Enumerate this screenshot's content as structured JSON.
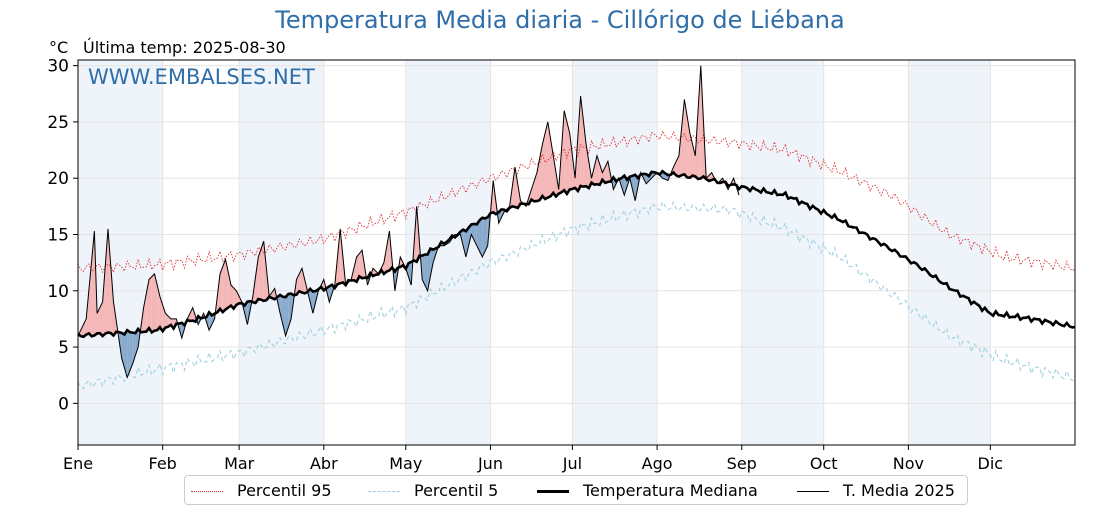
{
  "title": "Temperatura Media diaria - Cillórigo de Liébana",
  "unit": "°C",
  "last_temp": "Última temp: 2025-08-30",
  "watermark": "WWW.EMBALSES.NET",
  "legend": [
    {
      "label": "Percentil 95",
      "color": "#e03131",
      "style": "dotted"
    },
    {
      "label": "Percentil 5",
      "color": "#9fd0e0",
      "style": "dashed"
    },
    {
      "label": "Temperatura Mediana",
      "color": "#000000",
      "style": "thick"
    },
    {
      "label": "T. Media 2025",
      "color": "#000000",
      "style": "thin"
    }
  ],
  "chart_data": {
    "type": "line",
    "title": "Temperatura Media diaria - Cillórigo de Liébana",
    "xlabel": "",
    "ylabel": "°C",
    "xlim": [
      1,
      366
    ],
    "ylim": [
      -3.7,
      30.5
    ],
    "grid": true,
    "legend_position": "bottom",
    "x_ticks": [
      {
        "label": "Ene",
        "day": 1
      },
      {
        "label": "Feb",
        "day": 32
      },
      {
        "label": "Mar",
        "day": 60
      },
      {
        "label": "Abr",
        "day": 91
      },
      {
        "label": "May",
        "day": 121
      },
      {
        "label": "Jun",
        "day": 152
      },
      {
        "label": "Jul",
        "day": 182
      },
      {
        "label": "Ago",
        "day": 213
      },
      {
        "label": "Sep",
        "day": 244
      },
      {
        "label": "Oct",
        "day": 274
      },
      {
        "label": "Nov",
        "day": 305
      },
      {
        "label": "Dic",
        "day": 335
      }
    ],
    "y_ticks": [
      0,
      5,
      10,
      15,
      20,
      25,
      30
    ],
    "fill_colors": {
      "above_median": "#f4b6b6",
      "below_median": "#88aacc"
    },
    "series": [
      {
        "name": "Percentil 95",
        "color": "#e03131",
        "points": [
          [
            1,
            12
          ],
          [
            30,
            12.3
          ],
          [
            60,
            13.2
          ],
          [
            91,
            14.6
          ],
          [
            121,
            17
          ],
          [
            152,
            20
          ],
          [
            182,
            22.5
          ],
          [
            213,
            23.8
          ],
          [
            240,
            23.2
          ],
          [
            260,
            22.5
          ],
          [
            280,
            20.6
          ],
          [
            300,
            18.3
          ],
          [
            320,
            15
          ],
          [
            340,
            13
          ],
          [
            366,
            12
          ]
        ]
      },
      {
        "name": "Percentil 5",
        "color": "#9fd0e0",
        "points": [
          [
            1,
            1.5
          ],
          [
            30,
            3
          ],
          [
            60,
            4.5
          ],
          [
            91,
            6.5
          ],
          [
            121,
            8.5
          ],
          [
            152,
            12.5
          ],
          [
            182,
            15.5
          ],
          [
            213,
            17.5
          ],
          [
            240,
            17.2
          ],
          [
            260,
            15.5
          ],
          [
            280,
            13
          ],
          [
            300,
            9.5
          ],
          [
            320,
            6
          ],
          [
            340,
            3.8
          ],
          [
            366,
            2.2
          ]
        ]
      },
      {
        "name": "Temperatura Mediana",
        "color": "#000000",
        "points": [
          [
            1,
            6
          ],
          [
            30,
            6.5
          ],
          [
            45,
            7.5
          ],
          [
            60,
            8.8
          ],
          [
            91,
            10.2
          ],
          [
            121,
            12.2
          ],
          [
            152,
            16.8
          ],
          [
            182,
            19
          ],
          [
            200,
            20
          ],
          [
            213,
            20.5
          ],
          [
            230,
            20
          ],
          [
            244,
            19.2
          ],
          [
            260,
            18.5
          ],
          [
            280,
            16.3
          ],
          [
            300,
            13.5
          ],
          [
            310,
            12
          ],
          [
            320,
            10.3
          ],
          [
            335,
            8
          ],
          [
            350,
            7.5
          ],
          [
            366,
            6.8
          ]
        ]
      },
      {
        "name": "T. Media 2025",
        "color": "#000000",
        "points": [
          [
            1,
            6
          ],
          [
            4,
            7.5
          ],
          [
            7,
            15.3
          ],
          [
            8,
            8
          ],
          [
            10,
            9
          ],
          [
            12,
            15.5
          ],
          [
            14,
            9
          ],
          [
            17,
            4
          ],
          [
            19,
            2.3
          ],
          [
            21,
            3.5
          ],
          [
            23,
            5
          ],
          [
            25,
            8.5
          ],
          [
            27,
            11
          ],
          [
            29,
            11.5
          ],
          [
            31,
            9.5
          ],
          [
            33,
            8
          ],
          [
            35,
            7.5
          ],
          [
            37,
            7.5
          ],
          [
            39,
            5.8
          ],
          [
            41,
            7.5
          ],
          [
            43,
            8.5
          ],
          [
            45,
            7
          ],
          [
            47,
            8
          ],
          [
            49,
            6.5
          ],
          [
            51,
            7.5
          ],
          [
            53,
            11.5
          ],
          [
            55,
            12.8
          ],
          [
            57,
            10.5
          ],
          [
            59,
            10
          ],
          [
            61,
            9
          ],
          [
            63,
            7
          ],
          [
            65,
            9.5
          ],
          [
            67,
            13
          ],
          [
            69,
            14.4
          ],
          [
            71,
            9.5
          ],
          [
            73,
            10.2
          ],
          [
            75,
            8
          ],
          [
            77,
            6
          ],
          [
            79,
            7.5
          ],
          [
            81,
            11
          ],
          [
            83,
            12
          ],
          [
            85,
            10
          ],
          [
            87,
            8
          ],
          [
            89,
            10
          ],
          [
            91,
            11
          ],
          [
            93,
            9
          ],
          [
            95,
            10.5
          ],
          [
            97,
            15.5
          ],
          [
            99,
            10.5
          ],
          [
            101,
            11
          ],
          [
            103,
            13
          ],
          [
            105,
            13.6
          ],
          [
            107,
            10.5
          ],
          [
            109,
            12
          ],
          [
            111,
            11.5
          ],
          [
            113,
            12.5
          ],
          [
            115,
            15.3
          ],
          [
            117,
            10
          ],
          [
            119,
            13
          ],
          [
            121,
            12
          ],
          [
            123,
            10.5
          ],
          [
            125,
            17.5
          ],
          [
            127,
            11
          ],
          [
            129,
            10
          ],
          [
            131,
            12.5
          ],
          [
            133,
            14
          ],
          [
            135,
            14
          ],
          [
            137,
            14.3
          ],
          [
            139,
            15
          ],
          [
            141,
            15
          ],
          [
            143,
            13
          ],
          [
            145,
            15
          ],
          [
            147,
            14
          ],
          [
            149,
            13
          ],
          [
            151,
            14
          ],
          [
            153,
            19.8
          ],
          [
            155,
            16
          ],
          [
            157,
            17
          ],
          [
            159,
            17.5
          ],
          [
            161,
            21
          ],
          [
            163,
            18
          ],
          [
            165,
            17.5
          ],
          [
            167,
            19
          ],
          [
            169,
            20.5
          ],
          [
            171,
            23
          ],
          [
            173,
            25
          ],
          [
            175,
            22
          ],
          [
            177,
            19
          ],
          [
            179,
            26
          ],
          [
            181,
            24
          ],
          [
            183,
            20
          ],
          [
            185,
            27.3
          ],
          [
            187,
            23
          ],
          [
            189,
            20
          ],
          [
            191,
            22
          ],
          [
            193,
            20.5
          ],
          [
            195,
            21.5
          ],
          [
            197,
            19
          ],
          [
            199,
            20
          ],
          [
            201,
            18.5
          ],
          [
            203,
            20
          ],
          [
            205,
            18
          ],
          [
            207,
            20.5
          ],
          [
            209,
            19.5
          ],
          [
            211,
            20
          ],
          [
            213,
            20.5
          ],
          [
            215,
            20
          ],
          [
            217,
            19.8
          ],
          [
            219,
            21
          ],
          [
            221,
            22
          ],
          [
            223,
            27
          ],
          [
            225,
            24
          ],
          [
            227,
            22
          ],
          [
            229,
            30
          ],
          [
            231,
            20
          ],
          [
            233,
            20.5
          ],
          [
            235,
            19.5
          ],
          [
            237,
            20
          ],
          [
            239,
            19
          ],
          [
            241,
            20
          ],
          [
            243,
            18.5
          ]
        ]
      }
    ]
  }
}
